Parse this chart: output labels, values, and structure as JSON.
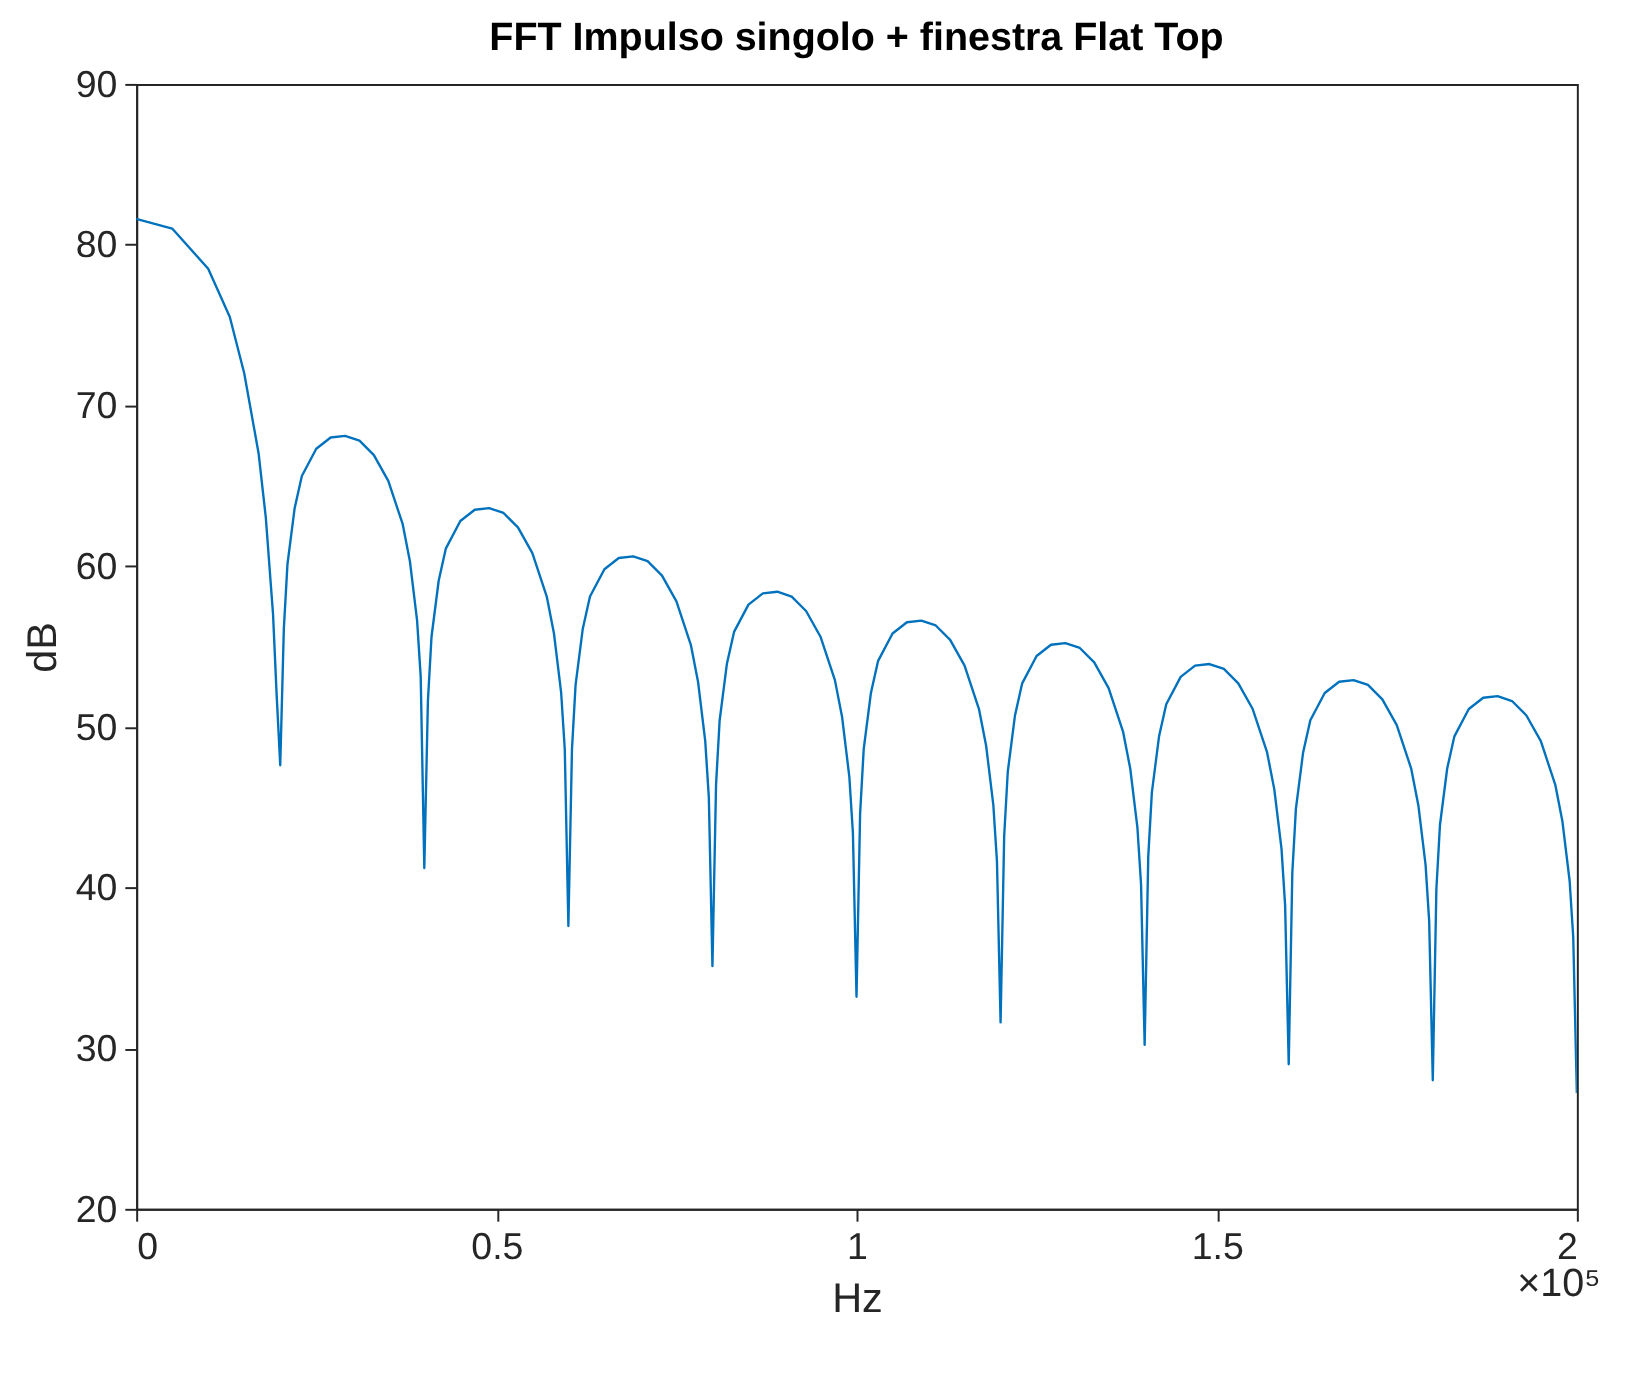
{
  "chart_data": {
    "type": "line",
    "title": "FFT Impulso singolo + finestra Flat Top",
    "xlabel": "Hz",
    "ylabel": "dB",
    "annotations": [
      "×10⁵"
    ],
    "xlim": [
      0,
      2
    ],
    "ylim": [
      20,
      90
    ],
    "xticks": [
      0,
      0.5,
      1,
      1.5,
      2
    ],
    "yticks": [
      20,
      30,
      40,
      50,
      60,
      70,
      80,
      90
    ],
    "grid": false,
    "marker": "none",
    "line_style": "solid",
    "series": [
      {
        "color": "#0072bd",
        "x": [
          0,
          0.05,
          0.1,
          0.13,
          0.15,
          0.17,
          0.18,
          0.19,
          0.195,
          0.2,
          0.205,
          0.21,
          0.22,
          0.23,
          0.25,
          0.27,
          0.29,
          0.31,
          0.33,
          0.35,
          0.37,
          0.38,
          0.39,
          0.395,
          0.4,
          0.405,
          0.41,
          0.42,
          0.43,
          0.45,
          0.47,
          0.49,
          0.51,
          0.53,
          0.55,
          0.57,
          0.58,
          0.59,
          0.595,
          0.6,
          0.605,
          0.61,
          0.62,
          0.63,
          0.65,
          0.67,
          0.69,
          0.71,
          0.73,
          0.75,
          0.77,
          0.78,
          0.79,
          0.795,
          0.8,
          0.805,
          0.81,
          0.82,
          0.83,
          0.85,
          0.87,
          0.89,
          0.91,
          0.93,
          0.95,
          0.97,
          0.98,
          0.99,
          0.995,
          1.0,
          1.005,
          1.01,
          1.02,
          1.03,
          1.05,
          1.07,
          1.09,
          1.11,
          1.13,
          1.15,
          1.17,
          1.18,
          1.19,
          1.195,
          1.2,
          1.205,
          1.21,
          1.22,
          1.23,
          1.25,
          1.27,
          1.29,
          1.31,
          1.33,
          1.35,
          1.37,
          1.38,
          1.39,
          1.395,
          1.4,
          1.405,
          1.41,
          1.42,
          1.43,
          1.45,
          1.47,
          1.49,
          1.51,
          1.53,
          1.55,
          1.57,
          1.58,
          1.59,
          1.595,
          1.6,
          1.605,
          1.61,
          1.62,
          1.63,
          1.65,
          1.67,
          1.69,
          1.71,
          1.73,
          1.75,
          1.77,
          1.78,
          1.79,
          1.795,
          1.8,
          1.805,
          1.81,
          1.82,
          1.83,
          1.85,
          1.87,
          1.89,
          1.91,
          1.93,
          1.95,
          1.97,
          1.98,
          1.99,
          1.995,
          2.0
        ],
        "values": [
          81.6,
          81.0,
          78.5,
          75.5,
          72.0,
          67.0,
          63.0,
          57.0,
          52.0,
          47.6,
          56.1,
          60.1,
          63.6,
          65.6,
          67.3,
          68.0,
          68.1,
          67.8,
          66.9,
          65.3,
          62.6,
          60.3,
          56.6,
          53.1,
          41.2,
          51.6,
          55.6,
          59.1,
          61.1,
          62.8,
          63.5,
          63.6,
          63.3,
          62.4,
          60.8,
          58.1,
          55.8,
          52.1,
          48.6,
          37.6,
          48.6,
          52.6,
          56.1,
          58.1,
          59.8,
          60.5,
          60.6,
          60.3,
          59.4,
          57.8,
          55.1,
          52.8,
          49.1,
          45.6,
          35.1,
          46.4,
          50.4,
          53.9,
          55.9,
          57.6,
          58.3,
          58.4,
          58.1,
          57.2,
          55.6,
          52.9,
          50.6,
          46.9,
          43.4,
          33.2,
          44.6,
          48.6,
          52.1,
          54.1,
          55.8,
          56.5,
          56.6,
          56.3,
          55.4,
          53.8,
          51.1,
          48.8,
          45.1,
          41.6,
          31.6,
          43.2,
          47.2,
          50.7,
          52.7,
          54.4,
          55.1,
          55.2,
          54.9,
          54.0,
          52.4,
          49.7,
          47.4,
          43.7,
          40.2,
          30.2,
          41.9,
          45.9,
          49.4,
          51.4,
          53.1,
          53.8,
          53.9,
          53.6,
          52.7,
          51.1,
          48.4,
          46.1,
          42.4,
          38.9,
          29.0,
          40.9,
          44.9,
          48.4,
          50.4,
          52.1,
          52.8,
          52.9,
          52.6,
          51.7,
          50.1,
          47.4,
          45.1,
          41.4,
          37.9,
          28.0,
          39.9,
          43.9,
          47.4,
          49.4,
          51.1,
          51.8,
          51.9,
          51.6,
          50.7,
          49.1,
          46.4,
          44.1,
          40.4,
          36.9,
          27.2
        ]
      }
    ]
  }
}
